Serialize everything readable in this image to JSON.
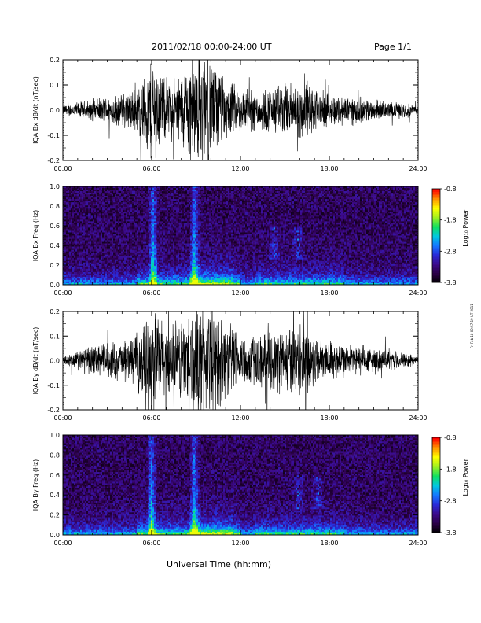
{
  "header": {
    "title": "2011/02/18  00:00-24:00 UT",
    "page": "Page 1/1"
  },
  "footer": {
    "xlabel": "Universal Time (hh:mm)",
    "stamp": "Fri Feb 18 09:57:19 UT 2011"
  },
  "colors": {
    "trace": "#000000",
    "colormap": [
      "#000000",
      "#2a0044",
      "#3c0a8a",
      "#2a2ad8",
      "#1478ff",
      "#00c8e0",
      "#10e060",
      "#a0f020",
      "#ffff00",
      "#ff9000",
      "#ff0000"
    ]
  },
  "chart_data": [
    {
      "type": "line",
      "ylabel": "IQA Bx dB/dt (nT/sec)",
      "xlim": [
        0,
        24
      ],
      "ylim": [
        -0.2,
        0.2
      ],
      "xticks": [
        "00:00",
        "06:00",
        "12:00",
        "18:00",
        "24:00"
      ],
      "yticks": [
        "0.2",
        "0.1",
        "0.0",
        "-0.1",
        "-0.2"
      ],
      "envelope": {
        "x": [
          0,
          1,
          2,
          3,
          4,
          5,
          5.5,
          6,
          6.5,
          7,
          8,
          8.5,
          9,
          9.5,
          10,
          11,
          12,
          13,
          14,
          15,
          16,
          16.5,
          17,
          18,
          19,
          20,
          21,
          22,
          23,
          24
        ],
        "amp": [
          0.02,
          0.03,
          0.04,
          0.05,
          0.07,
          0.09,
          0.13,
          0.22,
          0.16,
          0.1,
          0.15,
          0.19,
          0.22,
          0.22,
          0.2,
          0.12,
          0.08,
          0.08,
          0.09,
          0.1,
          0.11,
          0.12,
          0.08,
          0.06,
          0.06,
          0.05,
          0.04,
          0.03,
          0.03,
          0.02
        ]
      }
    },
    {
      "type": "heatmap",
      "ylabel": "IQA Bx Freq (Hz)",
      "xlim": [
        0,
        24
      ],
      "ylim": [
        0,
        1.0
      ],
      "xticks": [
        "00:00",
        "06:00",
        "12:00",
        "18:00",
        "24:00"
      ],
      "yticks": [
        "1.0",
        "0.8",
        "0.6",
        "0.4",
        "0.2",
        "0.0"
      ],
      "colorbar": {
        "label": "Log₁₀ Power",
        "ticks": [
          "-0.8",
          "-1.8",
          "-2.8",
          "-3.8"
        ],
        "range": [
          -3.8,
          -0.8
        ]
      },
      "features": {
        "bursts_hours": [
          6.1,
          8.9
        ],
        "activity_hours": [
          14.3,
          15.9
        ]
      }
    },
    {
      "type": "line",
      "ylabel": "IQA By dB/dt (nT/sec)",
      "xlim": [
        0,
        24
      ],
      "ylim": [
        -0.2,
        0.2
      ],
      "xticks": [
        "00:00",
        "06:00",
        "12:00",
        "18:00",
        "24:00"
      ],
      "yticks": [
        "0.2",
        "0.1",
        "0.0",
        "-0.1",
        "-0.2"
      ],
      "envelope": {
        "x": [
          0,
          1,
          2,
          3,
          4,
          5,
          5.5,
          6,
          6.5,
          7,
          8,
          8.5,
          9,
          9.5,
          10,
          11,
          12,
          13,
          14,
          15,
          16,
          16.5,
          17,
          18,
          19,
          20,
          21,
          22,
          23,
          24
        ],
        "amp": [
          0.02,
          0.04,
          0.06,
          0.07,
          0.08,
          0.1,
          0.15,
          0.22,
          0.18,
          0.14,
          0.16,
          0.2,
          0.22,
          0.22,
          0.21,
          0.16,
          0.1,
          0.1,
          0.11,
          0.13,
          0.14,
          0.16,
          0.1,
          0.08,
          0.07,
          0.06,
          0.05,
          0.04,
          0.03,
          0.02
        ]
      }
    },
    {
      "type": "heatmap",
      "ylabel": "IQA By Freq (Hz)",
      "xlim": [
        0,
        24
      ],
      "ylim": [
        0,
        1.0
      ],
      "xticks": [
        "00:00",
        "06:00",
        "12:00",
        "18:00",
        "24:00"
      ],
      "yticks": [
        "1.0",
        "0.8",
        "0.6",
        "0.4",
        "0.2",
        "0.0"
      ],
      "colorbar": {
        "label": "Log₁₀ Power",
        "ticks": [
          "-0.8",
          "-1.8",
          "-2.8",
          "-3.8"
        ],
        "range": [
          -3.8,
          -0.8
        ]
      },
      "features": {
        "bursts_hours": [
          6.0,
          8.9
        ],
        "activity_hours": [
          15.9,
          17.2
        ]
      }
    }
  ]
}
